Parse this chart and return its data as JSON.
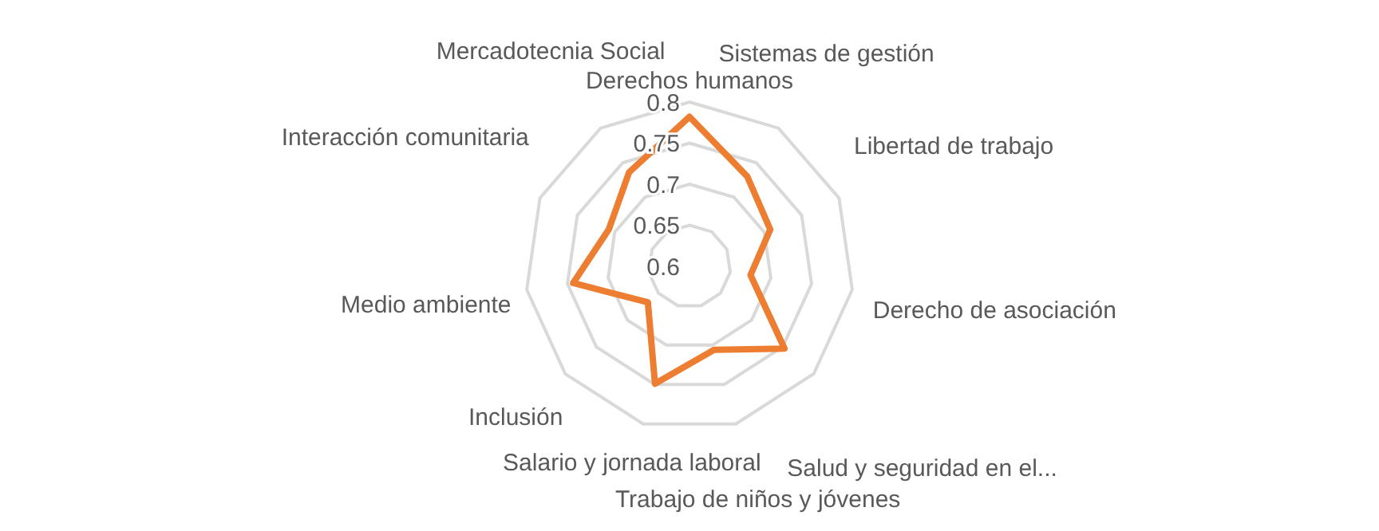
{
  "chart_data": {
    "type": "radar",
    "categories": [
      "Derechos humanos",
      "Sistemas de gestión",
      "Libertad de trabajo",
      "Derecho de asociación",
      "Salud y seguridad en el...",
      "Trabajo de niños y jóvenes",
      "Salario y jornada laboral",
      "Inclusión",
      "Medio ambiente",
      "Interacción comunitaria",
      "Mercadotecnia Social"
    ],
    "series": [
      {
        "color": "#ed7d31",
        "values": [
          0.782,
          0.73,
          0.708,
          0.675,
          0.753,
          0.706,
          0.749,
          0.667,
          0.743,
          0.708,
          0.736
        ]
      }
    ],
    "ylim": [
      0.6,
      0.8
    ],
    "yticks": [
      0.6,
      0.65,
      0.7,
      0.75,
      0.8
    ],
    "grid": true
  }
}
